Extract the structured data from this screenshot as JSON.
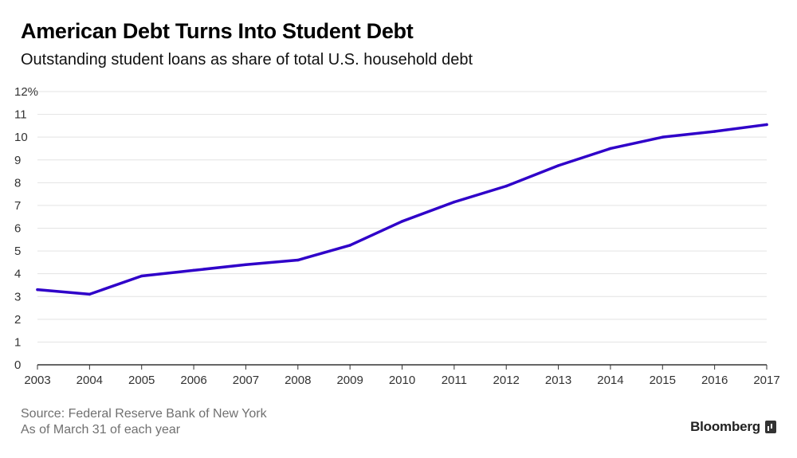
{
  "header": {
    "title": "American Debt Turns Into Student Debt",
    "subtitle": "Outstanding student loans as share of total U.S. household debt"
  },
  "footer": {
    "source": "Source: Federal Reserve Bank of New York",
    "note": "As of March 31 of each year",
    "brand": "Bloomberg"
  },
  "colors": {
    "line": "#2f00c9",
    "grid": "#e3e3e3",
    "axis": "#333333"
  },
  "chart_data": {
    "type": "line",
    "title": "American Debt Turns Into Student Debt",
    "subtitle": "Outstanding student loans as share of total U.S. household debt",
    "xlabel": "",
    "ylabel": "",
    "x": [
      2003,
      2004,
      2005,
      2006,
      2007,
      2008,
      2009,
      2010,
      2011,
      2012,
      2013,
      2014,
      2015,
      2016,
      2017
    ],
    "series": [
      {
        "values": [
          3.3,
          3.1,
          3.9,
          4.15,
          4.4,
          4.6,
          5.25,
          6.3,
          7.15,
          7.85,
          8.75,
          9.5,
          10.0,
          10.25,
          10.55
        ]
      }
    ],
    "ylim": [
      0,
      12
    ],
    "yticks": [
      0,
      1,
      2,
      3,
      4,
      5,
      6,
      7,
      8,
      9,
      10,
      11,
      12
    ],
    "ytick_labels": [
      "0",
      "1",
      "2",
      "3",
      "4",
      "5",
      "6",
      "7",
      "8",
      "9",
      "10",
      "11",
      "12%"
    ],
    "xtick_labels": [
      "2003",
      "2004",
      "2005",
      "2006",
      "2007",
      "2008",
      "2009",
      "2010",
      "2011",
      "2012",
      "2013",
      "2014",
      "2015",
      "2016",
      "2017"
    ],
    "grid": true,
    "legend": "none"
  }
}
